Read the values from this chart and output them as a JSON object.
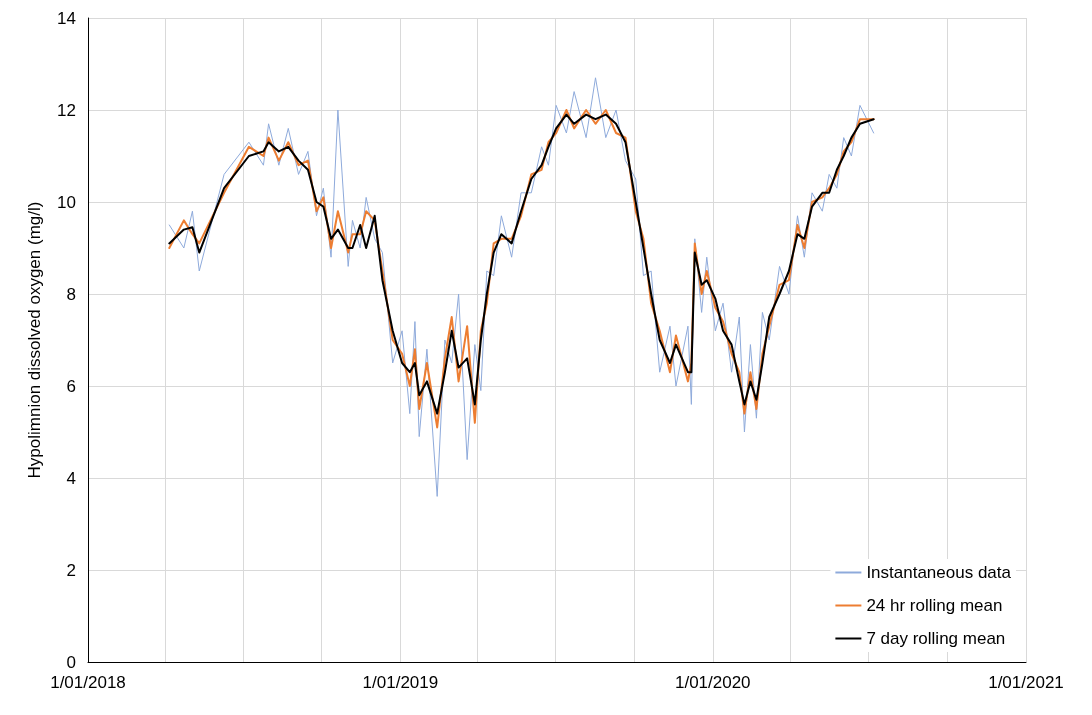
{
  "chart_data": {
    "type": "line",
    "ylabel": "Hypolimnion dissolved oxygen (mg/l)",
    "x": [
      "2018-04-06",
      "2018-04-23",
      "2018-05-03",
      "2018-05-11",
      "2018-06-09",
      "2018-07-08",
      "2018-07-25",
      "2018-07-31",
      "2018-08-12",
      "2018-08-23",
      "2018-09-04",
      "2018-09-15",
      "2018-09-25",
      "2018-10-03",
      "2018-10-12",
      "2018-10-20",
      "2018-11-01",
      "2018-11-06",
      "2018-11-15",
      "2018-11-22",
      "2018-12-02",
      "2018-12-11",
      "2018-12-23",
      "2019-01-03",
      "2019-01-12",
      "2019-01-18",
      "2019-01-23",
      "2019-02-01",
      "2019-02-13",
      "2019-02-22",
      "2019-03-02",
      "2019-03-10",
      "2019-03-20",
      "2019-03-29",
      "2019-04-05",
      "2019-04-12",
      "2019-04-20",
      "2019-04-29",
      "2019-05-11",
      "2019-05-22",
      "2019-06-03",
      "2019-06-15",
      "2019-06-23",
      "2019-07-02",
      "2019-07-14",
      "2019-07-23",
      "2019-08-06",
      "2019-08-17",
      "2019-08-29",
      "2019-09-10",
      "2019-09-21",
      "2019-10-03",
      "2019-10-12",
      "2019-10-21",
      "2019-10-31",
      "2019-11-12",
      "2019-11-19",
      "2019-12-03",
      "2019-12-07",
      "2019-12-11",
      "2019-12-19",
      "2019-12-25",
      "2020-01-04",
      "2020-01-13",
      "2020-01-23",
      "2020-02-01",
      "2020-02-07",
      "2020-02-14",
      "2020-02-21",
      "2020-02-28",
      "2020-03-07",
      "2020-03-19",
      "2020-03-30",
      "2020-04-09",
      "2020-04-17",
      "2020-04-26",
      "2020-05-08",
      "2020-05-16",
      "2020-05-25",
      "2020-06-02",
      "2020-06-11",
      "2020-06-21",
      "2020-07-07"
    ],
    "series": [
      {
        "name": "Instantaneous data",
        "color": "#8eaadb",
        "values": [
          9.5,
          9.0,
          9.8,
          8.5,
          10.6,
          11.3,
          10.8,
          11.7,
          10.8,
          11.6,
          10.6,
          11.1,
          9.7,
          10.3,
          8.8,
          12.0,
          8.6,
          9.6,
          9.0,
          10.1,
          9.2,
          8.9,
          6.5,
          7.2,
          5.4,
          7.4,
          4.9,
          6.8,
          3.6,
          7.0,
          6.5,
          8.0,
          4.4,
          6.9,
          5.9,
          8.5,
          8.4,
          9.7,
          8.8,
          10.2,
          10.2,
          11.2,
          10.8,
          12.1,
          11.5,
          12.4,
          11.4,
          12.7,
          11.4,
          12.0,
          10.9,
          10.5,
          8.4,
          8.5,
          6.3,
          7.3,
          6.0,
          7.3,
          5.6,
          9.2,
          7.6,
          8.8,
          7.2,
          7.8,
          6.3,
          7.5,
          5.0,
          6.9,
          5.3,
          7.6,
          7.0,
          8.6,
          8.0,
          9.7,
          8.8,
          10.2,
          9.8,
          10.6,
          10.3,
          11.4,
          11.0,
          12.1,
          11.5
        ]
      },
      {
        "name": "24 hr rolling mean",
        "color": "#ed7d31",
        "values": [
          9.0,
          9.6,
          9.3,
          9.1,
          10.2,
          11.2,
          11.0,
          11.4,
          10.9,
          11.3,
          10.8,
          10.9,
          9.8,
          10.1,
          9.0,
          9.8,
          8.9,
          9.3,
          9.3,
          9.8,
          9.6,
          8.5,
          7.0,
          6.7,
          6.0,
          6.8,
          5.5,
          6.5,
          5.1,
          6.6,
          7.5,
          6.1,
          7.3,
          5.2,
          7.2,
          7.8,
          9.1,
          9.2,
          9.2,
          9.7,
          10.6,
          10.7,
          11.3,
          11.5,
          12.0,
          11.6,
          12.0,
          11.7,
          12.0,
          11.5,
          11.4,
          9.8,
          9.2,
          7.8,
          7.2,
          6.3,
          7.1,
          6.1,
          6.5,
          9.1,
          8.0,
          8.5,
          7.7,
          7.4,
          6.7,
          6.3,
          5.4,
          6.3,
          5.5,
          6.7,
          7.3,
          8.2,
          8.3,
          9.5,
          9.0,
          10.0,
          10.1,
          10.3,
          10.6,
          11.1,
          11.3,
          11.8,
          11.8
        ]
      },
      {
        "name": "7 day rolling mean",
        "color": "#000000",
        "values": [
          9.1,
          9.4,
          9.45,
          8.9,
          10.3,
          11.0,
          11.1,
          11.3,
          11.1,
          11.2,
          10.9,
          10.7,
          10.0,
          9.9,
          9.2,
          9.4,
          9.0,
          9.0,
          9.5,
          9.0,
          9.7,
          8.3,
          7.2,
          6.5,
          6.3,
          6.5,
          5.8,
          6.1,
          5.4,
          6.3,
          7.2,
          6.4,
          6.6,
          5.6,
          7.0,
          8.0,
          8.9,
          9.3,
          9.1,
          9.8,
          10.5,
          10.8,
          11.2,
          11.6,
          11.9,
          11.7,
          11.9,
          11.8,
          11.9,
          11.7,
          11.3,
          10.0,
          9.0,
          8.0,
          7.0,
          6.5,
          6.9,
          6.3,
          6.3,
          8.9,
          8.2,
          8.3,
          7.9,
          7.2,
          6.9,
          6.1,
          5.6,
          6.1,
          5.7,
          6.5,
          7.5,
          8.0,
          8.5,
          9.3,
          9.2,
          9.9,
          10.2,
          10.2,
          10.7,
          11.0,
          11.4,
          11.7,
          11.8
        ]
      }
    ],
    "xlim": [
      "2018-01-01",
      "2021-01-01"
    ],
    "xticks": [
      {
        "value": "2018-01-01",
        "label": "1/01/2018"
      },
      {
        "value": "2018-04-01",
        "label": null
      },
      {
        "value": "2018-07-01",
        "label": null
      },
      {
        "value": "2018-10-01",
        "label": null
      },
      {
        "value": "2019-01-01",
        "label": "1/01/2019"
      },
      {
        "value": "2019-04-01",
        "label": null
      },
      {
        "value": "2019-07-01",
        "label": null
      },
      {
        "value": "2019-10-01",
        "label": null
      },
      {
        "value": "2020-01-01",
        "label": "1/01/2020"
      },
      {
        "value": "2020-04-01",
        "label": null
      },
      {
        "value": "2020-07-01",
        "label": null
      },
      {
        "value": "2020-10-01",
        "label": null
      },
      {
        "value": "2021-01-01",
        "label": "1/01/2021"
      }
    ],
    "ylim": [
      0,
      14
    ],
    "yticks": [
      0,
      2,
      4,
      6,
      8,
      10,
      12,
      14
    ],
    "grid": true,
    "legend": "bottom right",
    "marker": "none",
    "line_style": "solid"
  }
}
